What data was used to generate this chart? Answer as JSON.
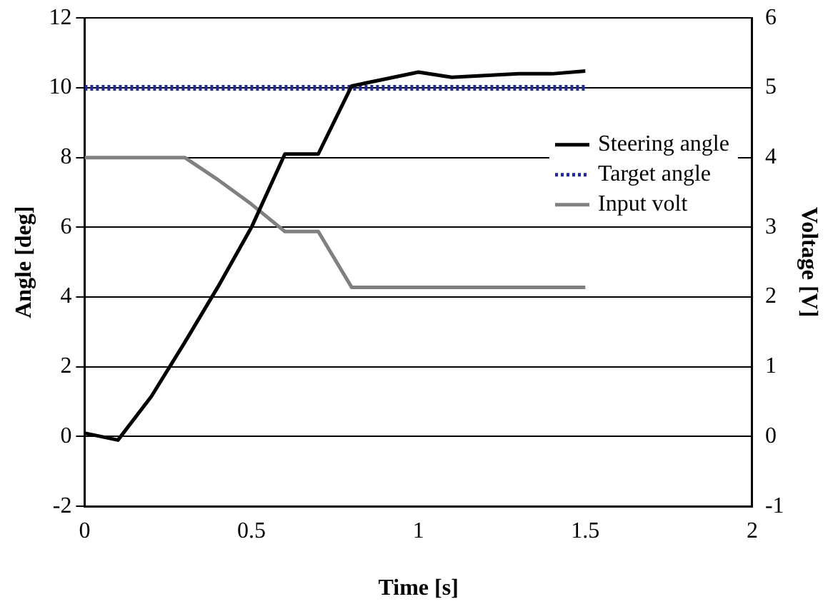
{
  "chart_data": {
    "type": "line",
    "xlabel": "Time [s]",
    "ylabel": "Angle [deg]",
    "y2label": "Voltage [V]",
    "xlim": [
      0,
      2
    ],
    "xticks": [
      0,
      0.5,
      1,
      1.5,
      2
    ],
    "ylim": [
      -2,
      12
    ],
    "yticks": [
      -2,
      0,
      2,
      4,
      6,
      8,
      10,
      12
    ],
    "y2lim": [
      -1,
      6
    ],
    "y2ticks": [
      -1,
      0,
      1,
      2,
      3,
      4,
      5,
      6
    ],
    "grid": "y",
    "legend": "right",
    "marker": "none",
    "series": [
      {
        "name": "Steering angle",
        "color": "#000000",
        "line_style": "solid",
        "x": [
          0,
          0.1,
          0.2,
          0.3,
          0.4,
          0.5,
          0.6,
          0.7,
          0.8,
          0.9,
          1.0,
          1.1,
          1.2,
          1.3,
          1.4,
          1.5
        ],
        "values": [
          0.1,
          -0.1,
          1.15,
          2.7,
          4.3,
          6,
          8.1,
          8.1,
          10.05,
          10.25,
          10.45,
          10.3,
          10.35,
          10.4,
          10.4,
          10.48
        ]
      },
      {
        "name": "Target angle",
        "color": "#1f2a9f",
        "line_style": "dotted",
        "x": [
          0,
          1.5
        ],
        "values": [
          10,
          10
        ]
      },
      {
        "name": "Input volt",
        "color": "#808080",
        "line_style": "solid",
        "axis": "y2",
        "x": [
          0,
          0.1,
          0.2,
          0.3,
          0.4,
          0.5,
          0.6,
          0.7,
          0.8,
          1.5
        ],
        "values": [
          4,
          4,
          4,
          4,
          3.68,
          3.33,
          2.94,
          2.94,
          2.14,
          2.14
        ]
      }
    ]
  }
}
